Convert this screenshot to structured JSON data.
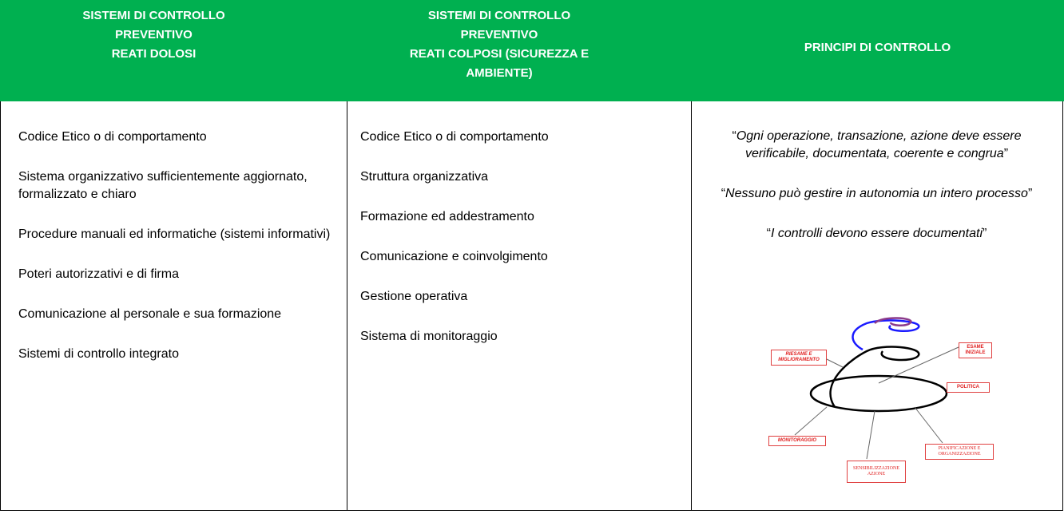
{
  "table": {
    "headers": [
      {
        "lines": [
          "SISTEMI DI CONTROLLO",
          "PREVENTIVO",
          "REATI DOLOSI"
        ]
      },
      {
        "lines": [
          "SISTEMI DI CONTROLLO",
          "PREVENTIVO",
          "REATI COLPOSI (SICUREZZA E AMBIENTE)"
        ]
      },
      {
        "lines": [
          "PRINCIPI DI CONTROLLO"
        ]
      }
    ],
    "col1": [
      "Codice Etico o di comportamento",
      "Sistema organizzativo sufficientemente aggiornato, formalizzato e chiaro",
      "Procedure manuali ed informatiche (sistemi informativi)",
      "Poteri autorizzativi e di firma",
      "Comunicazione al personale e sua formazione",
      "Sistemi di controllo integrato"
    ],
    "col2": [
      "Codice Etico o di comportamento",
      "Struttura organizzativa",
      "Formazione ed addestramento",
      "Comunicazione e coinvolgimento",
      "Gestione operativa",
      "Sistema di monitoraggio"
    ],
    "col3": [
      {
        "open": "“",
        "text": "Ogni operazione, transazione, azione deve essere verificabile, documentata, coerente e congrua",
        "close": "”"
      },
      {
        "open": "“",
        "text": "Nessuno può gestire in autonomia un intero processo",
        "close": "”"
      },
      {
        "open": "“",
        "text": "I controlli devono essere documentati",
        "close": "”"
      }
    ],
    "diagram": {
      "labels": [
        "RIESAME E MIGLIORAMENTO",
        "ESAME INIZIALE",
        "POLITICA",
        "MONITORAGGIO",
        "PIANIFICAZIONE E ORGANIZZAZIONE",
        "SENSIBILIZZAZIONE AZIONE"
      ]
    }
  }
}
